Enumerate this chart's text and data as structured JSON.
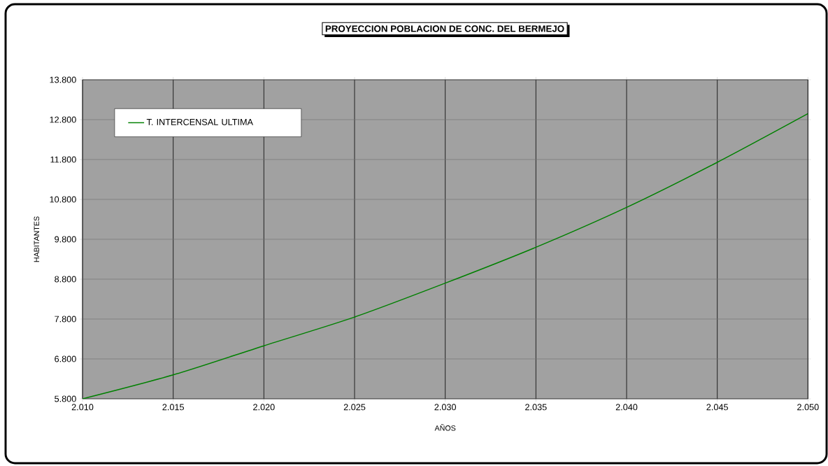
{
  "chart_data": {
    "type": "line",
    "title": "PROYECCION POBLACION DE CONC. DEL BERMEJO",
    "xlabel": "AÑOS",
    "ylabel": "HABITANTES",
    "x": [
      2010,
      2015,
      2020,
      2025,
      2030,
      2035,
      2040,
      2045,
      2050
    ],
    "series": [
      {
        "name": "T. INTERCENSAL ULTIMA",
        "color": "#008000",
        "values": [
          5800,
          6400,
          7130,
          7850,
          8700,
          9600,
          10600,
          11730,
          12950
        ]
      }
    ],
    "xlim": [
      2010,
      2050
    ],
    "ylim": [
      5800,
      13800
    ],
    "xticks": [
      {
        "value": 2010,
        "label": "2.010"
      },
      {
        "value": 2015,
        "label": "2.015"
      },
      {
        "value": 2020,
        "label": "2.020"
      },
      {
        "value": 2025,
        "label": "2.025"
      },
      {
        "value": 2030,
        "label": "2.030"
      },
      {
        "value": 2035,
        "label": "2.035"
      },
      {
        "value": 2040,
        "label": "2.040"
      },
      {
        "value": 2045,
        "label": "2.045"
      },
      {
        "value": 2050,
        "label": "2.050"
      }
    ],
    "yticks": [
      {
        "value": 5800,
        "label": "5.800"
      },
      {
        "value": 6800,
        "label": "6.800"
      },
      {
        "value": 7800,
        "label": "7.800"
      },
      {
        "value": 8800,
        "label": "8.800"
      },
      {
        "value": 9800,
        "label": "9.800"
      },
      {
        "value": 10800,
        "label": "10.800"
      },
      {
        "value": 11800,
        "label": "11.800"
      },
      {
        "value": 12800,
        "label": "12.800"
      },
      {
        "value": 13800,
        "label": "13.800"
      }
    ],
    "grid": true,
    "legend": "top left",
    "marker": "none",
    "line_style": "solid"
  }
}
